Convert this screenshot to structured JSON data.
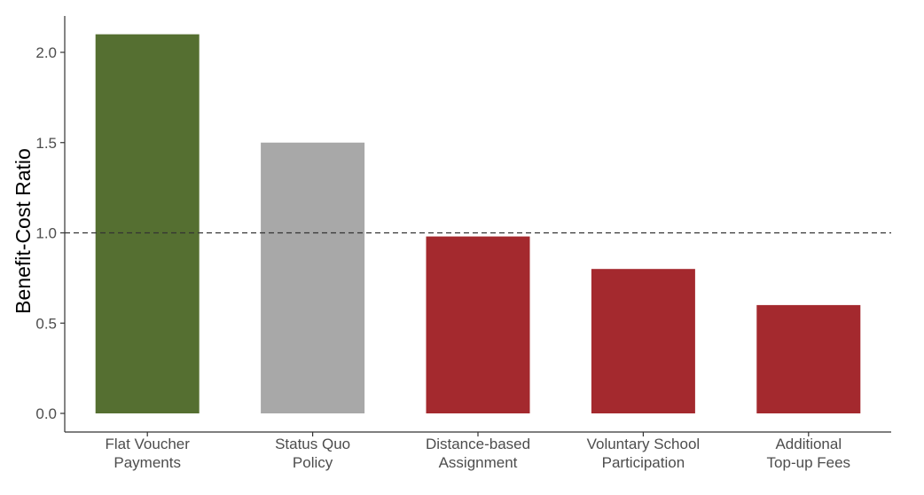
{
  "chart_data": {
    "type": "bar",
    "title": "",
    "xlabel": "",
    "ylabel": "Benefit-Cost Ratio",
    "ylim": [
      0,
      2.2
    ],
    "yticks": [
      "0.0",
      "0.5",
      "1.0",
      "1.5",
      "2.0"
    ],
    "ytick_values": [
      0,
      0.5,
      1.0,
      1.5,
      2.0
    ],
    "categories": [
      [
        "Flat Voucher",
        "Payments"
      ],
      [
        "Status Quo",
        "Policy"
      ],
      [
        "Distance-based",
        "Assignment"
      ],
      [
        "Voluntary School",
        "Participation"
      ],
      [
        "Additional",
        "Top-up Fees"
      ]
    ],
    "values": [
      2.1,
      1.5,
      0.98,
      0.8,
      0.6
    ],
    "bar_colors": [
      "#556f31",
      "#a8a8a8",
      "#a4292e",
      "#a4292e",
      "#a4292e"
    ],
    "reference_line": {
      "y": 1.0,
      "style": "dashed",
      "color": "#333333"
    },
    "grid": false,
    "legend": "none"
  }
}
